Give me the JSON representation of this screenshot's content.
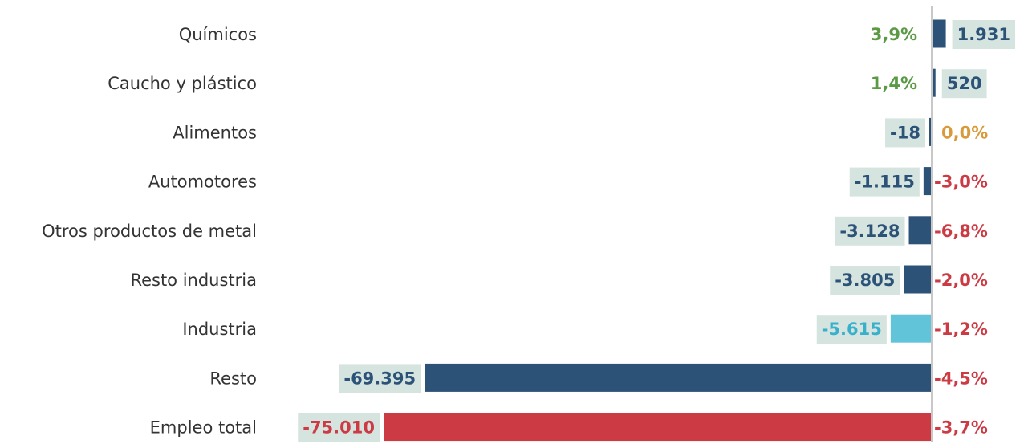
{
  "chart_data": {
    "type": "bar",
    "orientation": "horizontal",
    "title": "",
    "xlabel": "",
    "ylabel": "",
    "grid": false,
    "legend": "none",
    "xlim": [
      -75010,
      1931
    ],
    "categories": [
      "Químicos",
      "Caucho y plástico",
      "Alimentos",
      "Automotores",
      "Otros productos de metal",
      "Resto industria",
      "Industria",
      "Resto",
      "Empleo total"
    ],
    "values": [
      1931,
      520,
      -18,
      -1115,
      -3128,
      -3805,
      -5615,
      -69395,
      -75010
    ],
    "value_labels": [
      "1.931",
      "520",
      "-18",
      "-1.115",
      "-3.128",
      "-3.805",
      "-5.615",
      "-69.395",
      "-75.010"
    ],
    "percent_changes": [
      3.9,
      1.4,
      0.0,
      -3.0,
      -6.8,
      -2.0,
      -1.2,
      -4.5,
      -3.7
    ],
    "percent_labels": [
      "3,9%",
      "1,4%",
      "0,0%",
      "-3,0%",
      "-6,8%",
      "-2,0%",
      "-1,2%",
      "-4,5%",
      "-3,7%"
    ],
    "bar_colors": [
      "#2c5278",
      "#2c5278",
      "#2c5278",
      "#2c5278",
      "#2c5278",
      "#2c5278",
      "#62c4d8",
      "#2c5278",
      "#cc3a44"
    ],
    "value_label_colors": [
      "#2c5278",
      "#2c5278",
      "#2c5278",
      "#2c5278",
      "#2c5278",
      "#2c5278",
      "#38b0cc",
      "#2c5278",
      "#cc3a44"
    ],
    "percent_colors": [
      "#5b9a45",
      "#5b9a45",
      "#d89a3a",
      "#cc3a44",
      "#cc3a44",
      "#cc3a44",
      "#cc3a44",
      "#cc3a44",
      "#cc3a44"
    ],
    "label_background_color": "#d6e4e0",
    "axis_color": "#c8c8c8"
  }
}
